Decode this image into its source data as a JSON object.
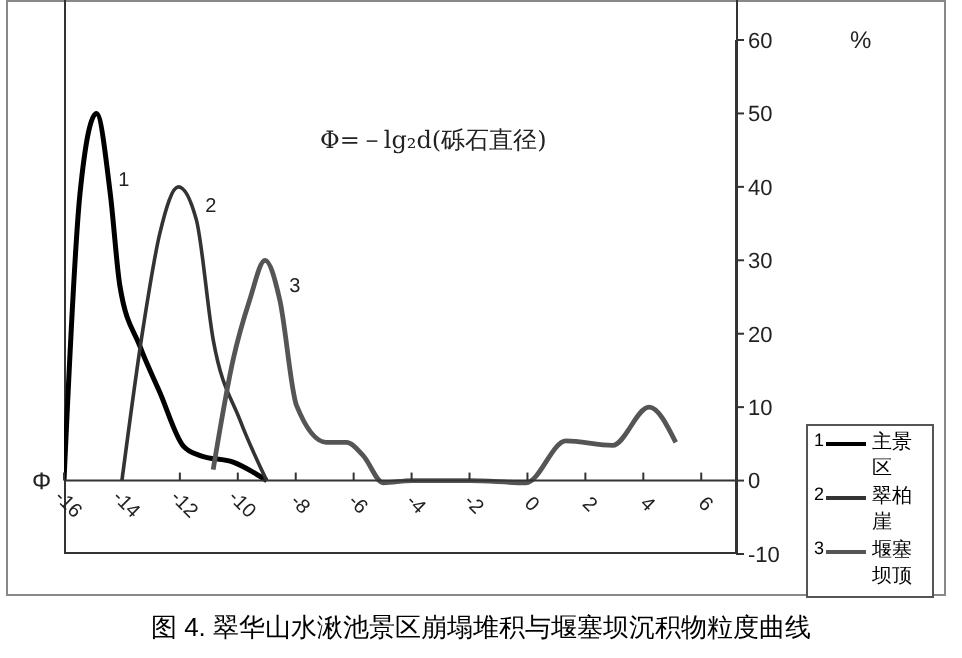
{
  "chart_data": {
    "type": "line",
    "title": "图 4. 翠华山水湫池景区崩塌堆积与堰塞坝沉积物粒度曲线",
    "xlabel": "Φ",
    "ylabel": "%",
    "annotations": [
      "Φ=－lg₂d(砾石直径)",
      {
        "text": "1",
        "x": -14.4,
        "y": 39
      },
      {
        "text": "2",
        "x": -11.4,
        "y": 35.5
      },
      {
        "text": "3",
        "x": -8.5,
        "y": 24.6
      }
    ],
    "xlim": [
      -16,
      7.2
    ],
    "xticks": [
      -16,
      -14,
      -12,
      -10,
      -8,
      -6,
      -4,
      -2,
      0,
      2,
      4,
      6
    ],
    "ylim": [
      -10,
      60
    ],
    "yticks": [
      -10,
      0,
      10,
      20,
      30,
      40,
      50,
      60
    ],
    "legend": "bottom right",
    "marker": "none",
    "line_style": "solid",
    "series": [
      {
        "name": "主景区",
        "color": "#000000",
        "x": [
          -16,
          -15.45,
          -14.88,
          -14.4,
          -14.07,
          -13.38,
          -12.69,
          -11.88,
          -11.3,
          -10.16,
          -9.0
        ],
        "values": [
          0,
          39,
          50,
          39,
          26.5,
          18.3,
          12,
          4.7,
          3.4,
          2.5,
          0
        ]
      },
      {
        "name": "翠柏崖",
        "color": "#333333",
        "x": [
          -14.0,
          -13.26,
          -12.69,
          -12.05,
          -11.43,
          -10.85,
          -9.93,
          -9.0
        ],
        "values": [
          0,
          21,
          33.7,
          40,
          35.5,
          19.2,
          8.3,
          0
        ]
      },
      {
        "name": "堰塞坝顶",
        "color": "#555555",
        "x": [
          -10.85,
          -10.16,
          -9.59,
          -9.06,
          -8.55,
          -7.97,
          -6.94,
          -6.25,
          -5.67,
          -4.98,
          -4,
          -2,
          -0.05,
          1.33,
          2.94,
          4.2,
          5.12
        ],
        "values": [
          1.5,
          16.5,
          24.6,
          30,
          24.6,
          10.2,
          5.2,
          5.2,
          3.4,
          -0.3,
          0,
          0,
          -0.3,
          5.4,
          4.8,
          10,
          5.2
        ]
      }
    ]
  }
}
